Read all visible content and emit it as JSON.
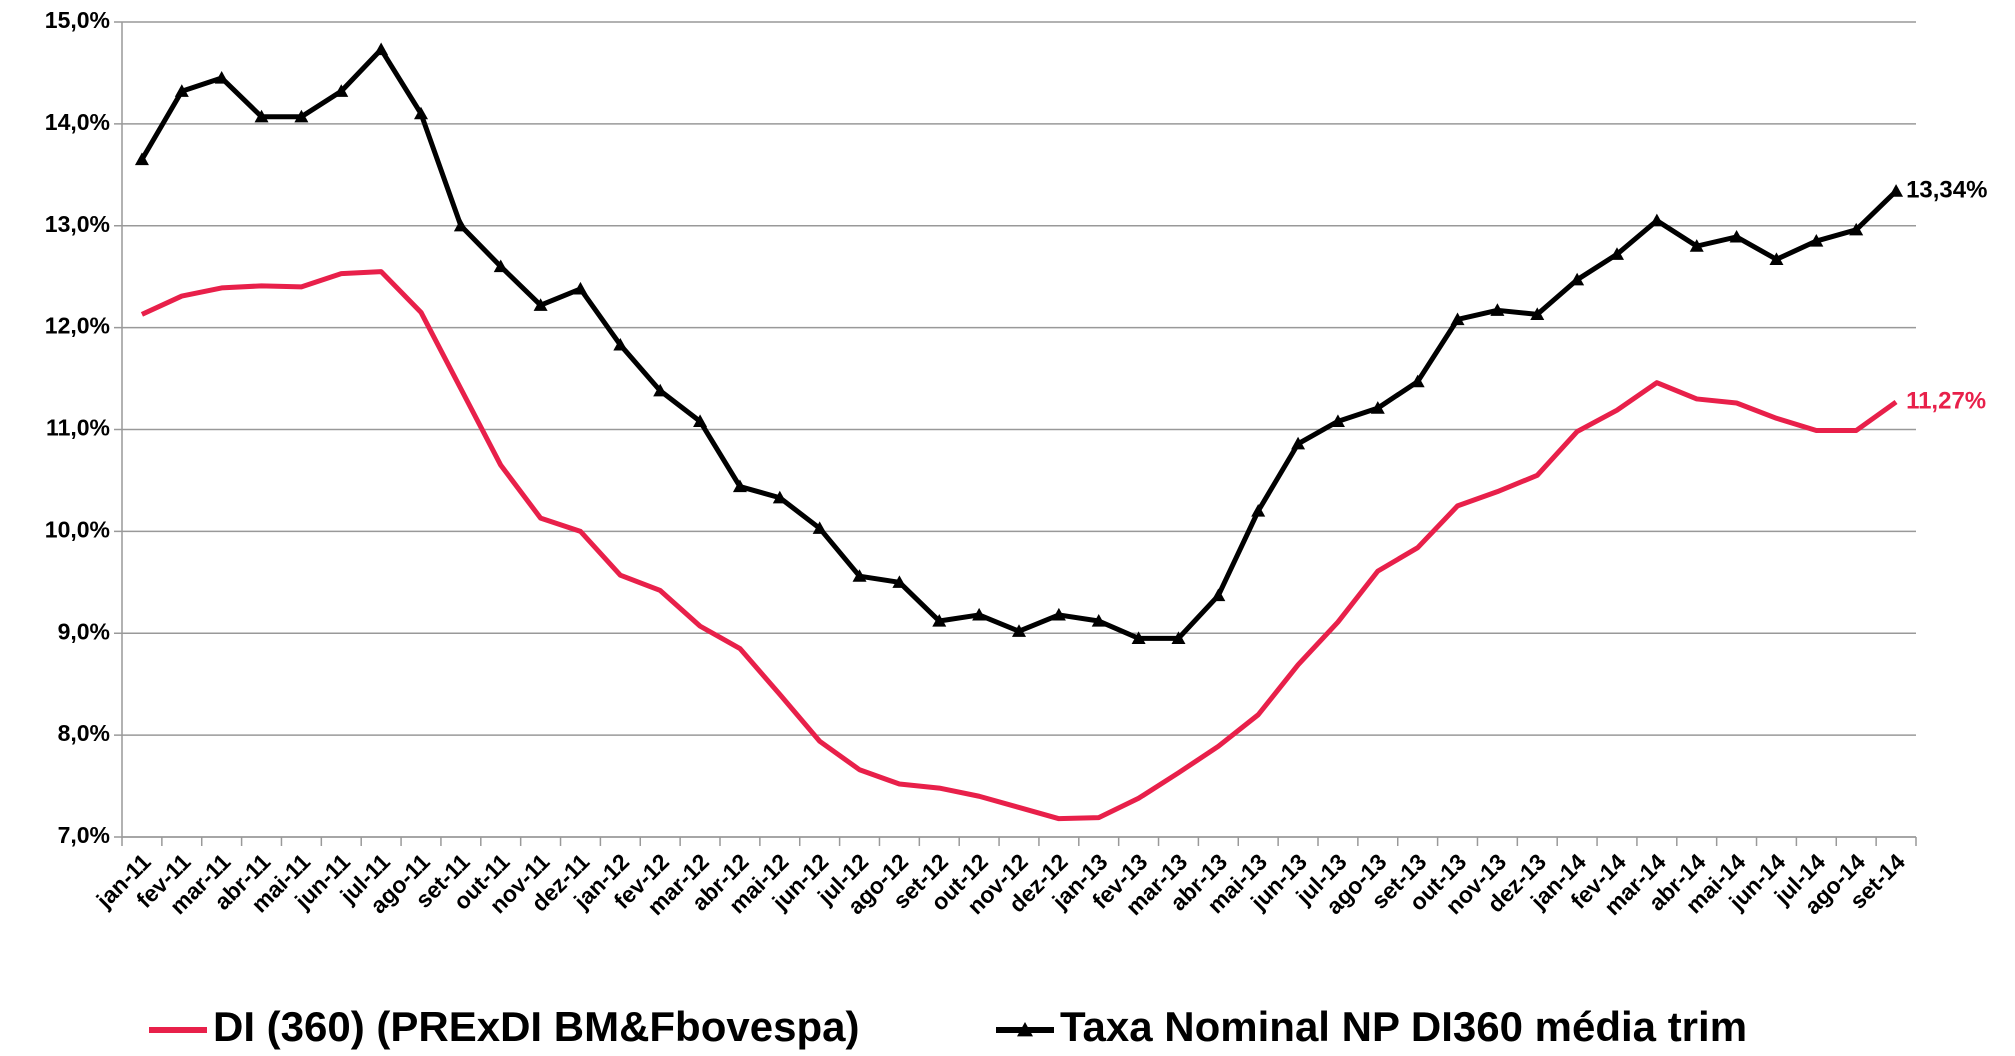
{
  "chart_data": {
    "type": "line",
    "categories": [
      "jan-11",
      "fev-11",
      "mar-11",
      "abr-11",
      "mai-11",
      "jun-11",
      "jul-11",
      "ago-11",
      "set-11",
      "out-11",
      "nov-11",
      "dez-11",
      "jan-12",
      "fev-12",
      "mar-12",
      "abr-12",
      "mai-12",
      "jun-12",
      "jul-12",
      "ago-12",
      "set-12",
      "out-12",
      "nov-12",
      "dez-12",
      "jan-13",
      "fev-13",
      "mar-13",
      "abr-13",
      "mai-13",
      "jun-13",
      "jul-13",
      "ago-13",
      "set-13",
      "out-13",
      "nov-13",
      "dez-13",
      "jan-14",
      "fev-14",
      "mar-14",
      "abr-14",
      "mai-14",
      "jun-14",
      "jul-14",
      "ago-14",
      "set-14"
    ],
    "series": [
      {
        "name": "DI (360) (PRExDI BM&Fbovespa)",
        "color": "#e8204a",
        "marker": false,
        "values": [
          12.13,
          12.31,
          12.39,
          12.41,
          12.4,
          12.53,
          12.55,
          12.15,
          11.4,
          10.65,
          10.13,
          10.0,
          9.57,
          9.42,
          9.07,
          8.85,
          8.4,
          7.94,
          7.66,
          7.52,
          7.48,
          7.4,
          7.29,
          7.18,
          7.19,
          7.38,
          7.63,
          7.89,
          8.2,
          8.69,
          9.11,
          9.61,
          9.84,
          10.25,
          10.39,
          10.55,
          10.98,
          11.19,
          11.46,
          11.3,
          11.26,
          11.11,
          10.99,
          10.99,
          11.27
        ],
        "value_labels": [
          null,
          null,
          null,
          null,
          null,
          null,
          null,
          null,
          null,
          null,
          null,
          null,
          null,
          null,
          null,
          null,
          null,
          null,
          null,
          null,
          null,
          null,
          null,
          null,
          null,
          null,
          null,
          null,
          null,
          null,
          null,
          null,
          null,
          null,
          null,
          null,
          null,
          null,
          null,
          null,
          null,
          null,
          null,
          null,
          "11,27%"
        ]
      },
      {
        "name": "Taxa Nominal  NP DI360 média trim",
        "color": "#000000",
        "marker": true,
        "values": [
          13.65,
          14.32,
          14.45,
          14.07,
          14.07,
          14.32,
          14.73,
          14.1,
          13.0,
          12.6,
          12.22,
          12.38,
          11.83,
          11.38,
          11.08,
          10.44,
          10.33,
          10.03,
          9.56,
          9.5,
          9.12,
          9.18,
          9.02,
          9.18,
          9.12,
          8.95,
          8.95,
          9.37,
          10.2,
          10.86,
          11.08,
          11.21,
          11.47,
          12.08,
          12.17,
          12.13,
          12.47,
          12.72,
          13.05,
          12.8,
          12.89,
          12.67,
          12.85,
          12.96,
          13.34
        ],
        "value_labels": [
          null,
          null,
          null,
          null,
          null,
          null,
          null,
          null,
          null,
          null,
          null,
          null,
          null,
          null,
          null,
          null,
          null,
          null,
          null,
          null,
          null,
          null,
          null,
          null,
          null,
          null,
          null,
          null,
          null,
          null,
          null,
          null,
          null,
          null,
          null,
          null,
          null,
          null,
          null,
          null,
          null,
          null,
          null,
          null,
          "13,34%"
        ]
      }
    ],
    "ylim": [
      7,
      15
    ],
    "yticks": [
      {
        "value": 7,
        "label": "7,0%"
      },
      {
        "value": 8,
        "label": "8,0%"
      },
      {
        "value": 9,
        "label": "9,0%"
      },
      {
        "value": 10,
        "label": "10,0%"
      },
      {
        "value": 11,
        "label": "11,0%"
      },
      {
        "value": 12,
        "label": "12,0%"
      },
      {
        "value": 13,
        "label": "13,0%"
      },
      {
        "value": 14,
        "label": "14,0%"
      },
      {
        "value": 15,
        "label": "15,0%"
      }
    ],
    "grid": true,
    "legend": "bottom"
  }
}
